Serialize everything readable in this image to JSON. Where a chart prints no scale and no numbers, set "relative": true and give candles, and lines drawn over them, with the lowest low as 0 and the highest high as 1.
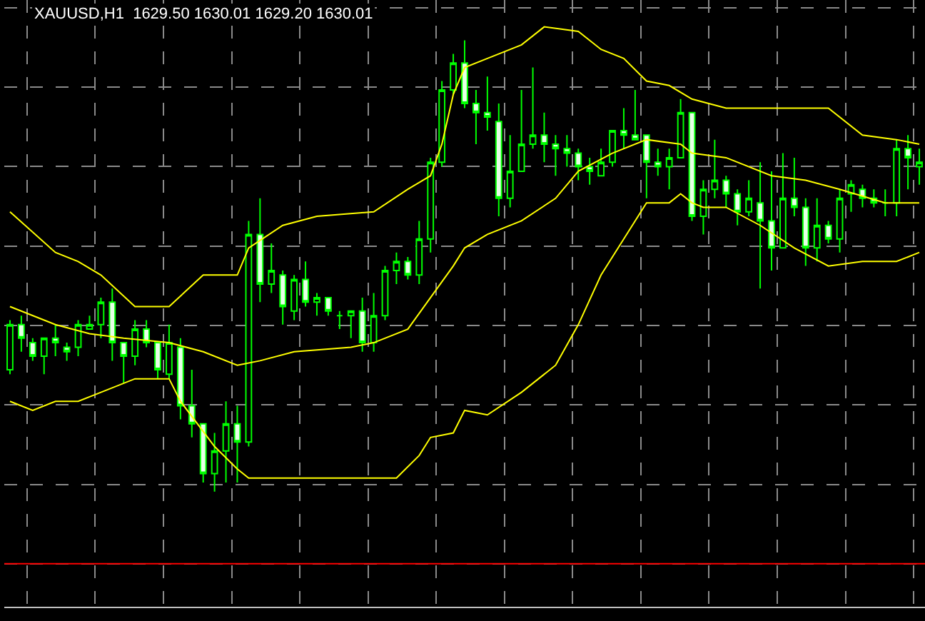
{
  "chart_data": {
    "type": "candlestick",
    "title": "XAUUSD,H1  1629.50 1630.01 1629.20 1630.01",
    "relative": true,
    "tick_labels": false,
    "grid": true,
    "categories": [
      null,
      null,
      null,
      null,
      null,
      null,
      null,
      null,
      null,
      null,
      null,
      null,
      null,
      null,
      null,
      null,
      null,
      null,
      null,
      null,
      null,
      null,
      null,
      null,
      null,
      null,
      null,
      null,
      null,
      null,
      null,
      null,
      null,
      null,
      null,
      null,
      null,
      null,
      null,
      null,
      null,
      null,
      null,
      null,
      null,
      null,
      null,
      null,
      null,
      null,
      null,
      null,
      null,
      null,
      null,
      null,
      null,
      null,
      null,
      null,
      null,
      null,
      null,
      null,
      null,
      null,
      null,
      null,
      null,
      null,
      null,
      null,
      null,
      null,
      null,
      null,
      null,
      null,
      null,
      null,
      null
    ],
    "ohlc": [
      [
        0.27,
        0.38,
        0.26,
        0.37
      ],
      [
        0.37,
        0.39,
        0.31,
        0.34
      ],
      [
        0.33,
        0.34,
        0.29,
        0.3
      ],
      [
        0.3,
        0.34,
        0.26,
        0.34
      ],
      [
        0.34,
        0.37,
        0.3,
        0.33
      ],
      [
        0.32,
        0.33,
        0.29,
        0.31
      ],
      [
        0.32,
        0.38,
        0.3,
        0.37
      ],
      [
        0.36,
        0.39,
        0.36,
        0.37
      ],
      [
        0.37,
        0.43,
        0.34,
        0.42
      ],
      [
        0.42,
        0.45,
        0.29,
        0.33
      ],
      [
        0.33,
        0.33,
        0.24,
        0.3
      ],
      [
        0.3,
        0.38,
        0.28,
        0.36
      ],
      [
        0.36,
        0.38,
        0.32,
        0.33
      ],
      [
        0.33,
        0.33,
        0.25,
        0.27
      ],
      [
        0.26,
        0.37,
        0.25,
        0.33
      ],
      [
        0.32,
        0.34,
        0.16,
        0.19
      ],
      [
        0.19,
        0.27,
        0.12,
        0.15
      ],
      [
        0.15,
        0.15,
        0.02,
        0.04
      ],
      [
        0.04,
        0.13,
        0,
        0.09
      ],
      [
        0.09,
        0.2,
        0.02,
        0.15
      ],
      [
        0.15,
        0.19,
        0.02,
        0.11
      ],
      [
        0.11,
        0.6,
        0.1,
        0.57
      ],
      [
        0.57,
        0.65,
        0.42,
        0.46
      ],
      [
        0.46,
        0.55,
        0.44,
        0.49
      ],
      [
        0.48,
        0.49,
        0.37,
        0.41
      ],
      [
        0.4,
        0.48,
        0.38,
        0.47
      ],
      [
        0.47,
        0.51,
        0.41,
        0.42
      ],
      [
        0.42,
        0.44,
        0.39,
        0.43
      ],
      [
        0.43,
        0.43,
        0.39,
        0.4
      ],
      [
        0.39,
        0.4,
        0.36,
        0.39
      ],
      [
        0.39,
        0.4,
        0.34,
        0.4
      ],
      [
        0.4,
        0.43,
        0.31,
        0.33
      ],
      [
        0.33,
        0.44,
        0.31,
        0.39
      ],
      [
        0.39,
        0.5,
        0.38,
        0.49
      ],
      [
        0.49,
        0.53,
        0.46,
        0.51
      ],
      [
        0.51,
        0.52,
        0.47,
        0.48
      ],
      [
        0.48,
        0.6,
        0.46,
        0.56
      ],
      [
        0.56,
        0.74,
        0.53,
        0.73
      ],
      [
        0.73,
        0.91,
        0.72,
        0.89
      ],
      [
        0.89,
        0.97,
        0.88,
        0.95
      ],
      [
        0.95,
        1,
        0.85,
        0.86
      ],
      [
        0.86,
        0.89,
        0.77,
        0.84
      ],
      [
        0.84,
        0.92,
        0.8,
        0.83
      ],
      [
        0.82,
        0.86,
        0.61,
        0.65
      ],
      [
        0.65,
        0.79,
        0.63,
        0.71
      ],
      [
        0.71,
        0.89,
        0.71,
        0.77
      ],
      [
        0.77,
        0.94,
        0.76,
        0.79
      ],
      [
        0.79,
        0.84,
        0.73,
        0.77
      ],
      [
        0.77,
        0.79,
        0.7,
        0.76
      ],
      [
        0.76,
        0.79,
        0.72,
        0.75
      ],
      [
        0.75,
        0.76,
        0.69,
        0.72
      ],
      [
        0.72,
        0.74,
        0.68,
        0.71
      ],
      [
        0.7,
        0.76,
        0.7,
        0.73
      ],
      [
        0.73,
        0.8,
        0.72,
        0.8
      ],
      [
        0.8,
        0.85,
        0.76,
        0.79
      ],
      [
        0.79,
        0.89,
        0.78,
        0.78
      ],
      [
        0.79,
        0.79,
        0.65,
        0.73
      ],
      [
        0.73,
        0.76,
        0.7,
        0.72
      ],
      [
        0.72,
        0.76,
        0.67,
        0.74
      ],
      [
        0.74,
        0.87,
        0.74,
        0.84
      ],
      [
        0.84,
        0.84,
        0.6,
        0.61
      ],
      [
        0.61,
        0.69,
        0.57,
        0.67
      ],
      [
        0.67,
        0.78,
        0.65,
        0.69
      ],
      [
        0.69,
        0.7,
        0.63,
        0.66
      ],
      [
        0.66,
        0.67,
        0.59,
        0.62
      ],
      [
        0.62,
        0.69,
        0.61,
        0.65
      ],
      [
        0.64,
        0.73,
        0.45,
        0.6
      ],
      [
        0.6,
        0.71,
        0.49,
        0.54
      ],
      [
        0.54,
        0.75,
        0.54,
        0.65
      ],
      [
        0.65,
        0.74,
        0.61,
        0.63
      ],
      [
        0.63,
        0.65,
        0.5,
        0.54
      ],
      [
        0.54,
        0.65,
        0.51,
        0.59
      ],
      [
        0.59,
        0.6,
        0.55,
        0.56
      ],
      [
        0.56,
        0.67,
        0.53,
        0.65
      ],
      [
        0.66,
        0.69,
        0.62,
        0.68
      ],
      [
        0.67,
        0.68,
        0.63,
        0.65
      ],
      [
        0.65,
        0.67,
        0.63,
        0.64
      ],
      [
        0.64,
        0.67,
        0.61,
        0.64
      ],
      [
        0.64,
        0.78,
        0.61,
        0.76
      ],
      [
        0.76,
        0.79,
        0.67,
        0.74
      ],
      [
        0.72,
        0.76,
        0.68,
        0.73
      ]
    ],
    "series": [
      {
        "type": "line",
        "color": "#ffff00",
        "values": [
          0.62,
          null,
          null,
          null,
          0.53,
          null,
          0.51,
          null,
          0.48,
          null,
          null,
          0.41,
          null,
          null,
          0.41,
          null,
          null,
          0.48,
          null,
          null,
          0.48,
          0.54,
          null,
          null,
          0.59,
          null,
          null,
          0.61,
          null,
          null,
          null,
          null,
          0.62,
          null,
          null,
          0.67,
          null,
          0.7,
          0.77,
          0.88,
          0.94,
          null,
          0.96,
          null,
          null,
          0.99,
          null,
          1.03,
          null,
          null,
          1.02,
          null,
          0.98,
          null,
          0.96,
          null,
          0.91,
          null,
          0.9,
          null,
          0.87,
          null,
          null,
          0.85,
          null,
          null,
          null,
          0.85,
          null,
          0.85,
          null,
          null,
          0.85,
          null,
          null,
          0.79,
          null,
          null,
          0.78,
          null,
          0.77
        ]
      },
      {
        "type": "line",
        "color": "#ffff00",
        "values": [
          0.41,
          null,
          null,
          null,
          0.37,
          null,
          null,
          0.35,
          null,
          null,
          0.34,
          null,
          null,
          null,
          0.33,
          null,
          null,
          0.31,
          null,
          null,
          0.28,
          null,
          0.29,
          null,
          null,
          0.31,
          null,
          null,
          null,
          null,
          0.32,
          null,
          0.33,
          null,
          null,
          0.36,
          null,
          0.43,
          null,
          0.5,
          0.54,
          null,
          0.57,
          null,
          null,
          0.6,
          null,
          null,
          0.65,
          null,
          0.71,
          null,
          null,
          0.75,
          null,
          null,
          0.78,
          null,
          null,
          0.77,
          0.75,
          null,
          null,
          0.74,
          null,
          null,
          null,
          0.7,
          null,
          null,
          0.69,
          null,
          null,
          0.67,
          null,
          null,
          null,
          0.64,
          null,
          null,
          0.64
        ]
      },
      {
        "type": "line",
        "color": "#ffff00",
        "values": [
          0.2,
          null,
          0.18,
          null,
          0.2,
          null,
          0.2,
          null,
          0.22,
          null,
          null,
          0.25,
          null,
          0.25,
          0.25,
          0.2,
          null,
          null,
          0.1,
          null,
          0.05,
          0.03,
          null,
          null,
          0.03,
          null,
          null,
          null,
          null,
          null,
          0.03,
          null,
          0.03,
          null,
          0.03,
          null,
          0.08,
          0.12,
          null,
          0.13,
          0.18,
          null,
          0.17,
          null,
          null,
          0.22,
          null,
          null,
          0.28,
          null,
          0.37,
          null,
          0.48,
          null,
          0.56,
          null,
          0.64,
          null,
          0.64,
          0.66,
          0.64,
          0.63,
          null,
          0.63,
          null,
          null,
          0.59,
          null,
          null,
          0.54,
          null,
          null,
          0.5,
          null,
          null,
          0.51,
          null,
          null,
          0.51,
          null,
          0.53
        ]
      }
    ],
    "ref_lines": [
      {
        "axis": "y",
        "value": -0.16,
        "color": "#ff0000"
      }
    ]
  }
}
